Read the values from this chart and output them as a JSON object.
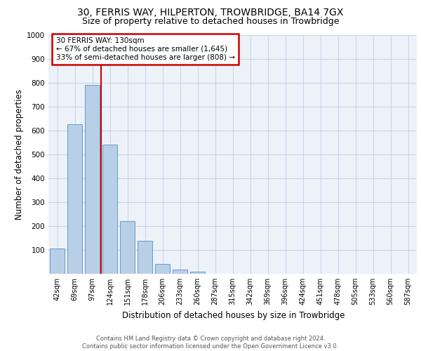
{
  "title1": "30, FERRIS WAY, HILPERTON, TROWBRIDGE, BA14 7GX",
  "title2": "Size of property relative to detached houses in Trowbridge",
  "xlabel": "Distribution of detached houses by size in Trowbridge",
  "ylabel": "Number of detached properties",
  "bar_values": [
    107,
    625,
    790,
    540,
    220,
    137,
    42,
    17,
    10,
    0,
    0,
    0,
    0,
    0,
    0,
    0,
    0,
    0,
    0,
    0,
    0
  ],
  "categories": [
    "42sqm",
    "69sqm",
    "97sqm",
    "124sqm",
    "151sqm",
    "178sqm",
    "206sqm",
    "233sqm",
    "260sqm",
    "287sqm",
    "315sqm",
    "342sqm",
    "369sqm",
    "396sqm",
    "424sqm",
    "451sqm",
    "478sqm",
    "505sqm",
    "533sqm",
    "560sqm",
    "587sqm"
  ],
  "bar_color": "#b8cfe8",
  "bar_edge_color": "#6699cc",
  "vline_x": 2.5,
  "vline_color": "#cc0000",
  "annotation_text": "30 FERRIS WAY: 130sqm\n← 67% of detached houses are smaller (1,645)\n33% of semi-detached houses are larger (808) →",
  "annotation_box_color": "#cc0000",
  "ylim": [
    0,
    1000
  ],
  "yticks": [
    0,
    100,
    200,
    300,
    400,
    500,
    600,
    700,
    800,
    900,
    1000
  ],
  "grid_color": "#c8d4e8",
  "bg_color": "#edf2f9",
  "footer": "Contains HM Land Registry data © Crown copyright and database right 2024.\nContains public sector information licensed under the Open Government Licence v3.0.",
  "title1_fontsize": 10,
  "title2_fontsize": 9,
  "xlabel_fontsize": 8.5,
  "ylabel_fontsize": 8.5,
  "footer_fontsize": 6.0
}
